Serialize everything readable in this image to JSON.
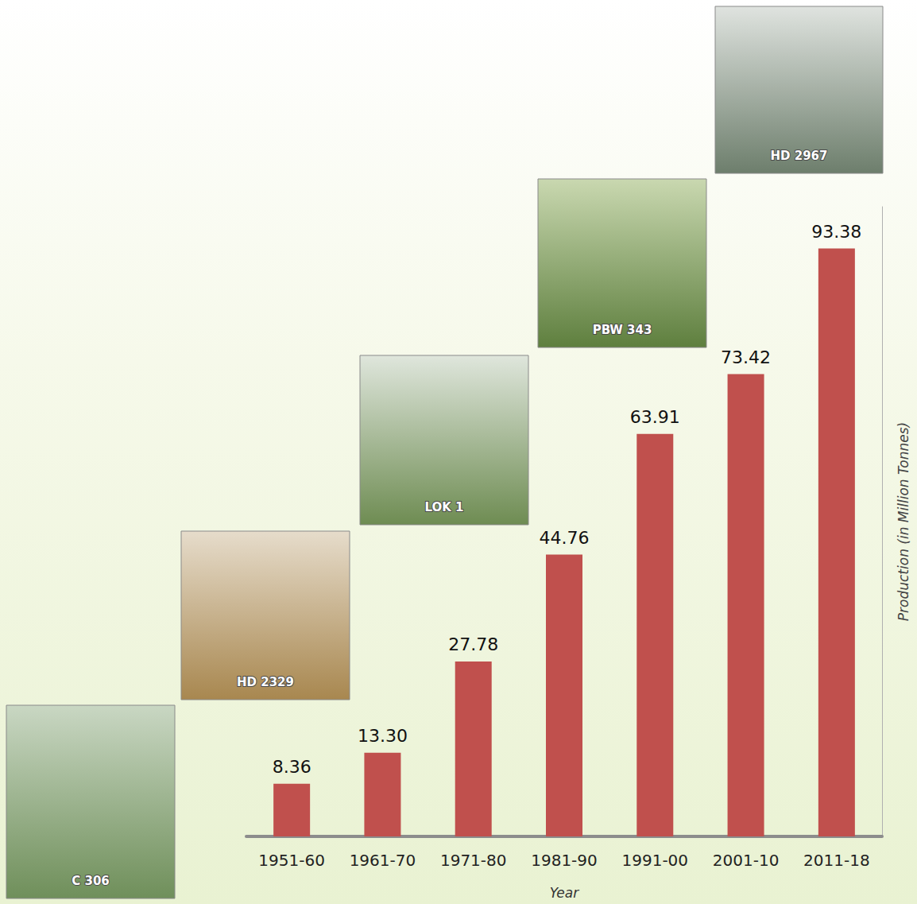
{
  "chart_data": {
    "type": "bar",
    "categories": [
      "1951-60",
      "1961-70",
      "1971-80",
      "1981-90",
      "1991-00",
      "2001-10",
      "2011-18"
    ],
    "values": [
      8.36,
      13.3,
      27.78,
      44.76,
      63.91,
      73.42,
      93.38
    ],
    "value_labels": [
      "8.36",
      "13.30",
      "27.78",
      "44.76",
      "63.91",
      "73.42",
      "93.38"
    ],
    "color": "#c0504d",
    "x_label": "Year",
    "y_label": "Production (in Million Tonnes)",
    "ylim": [
      0,
      100
    ],
    "grid": false,
    "data_labels": true,
    "tick_labels": "x",
    "annotations": [
      "C 306",
      "HD 2329",
      "LOK 1",
      "PBW 343",
      "HD 2967"
    ]
  }
}
